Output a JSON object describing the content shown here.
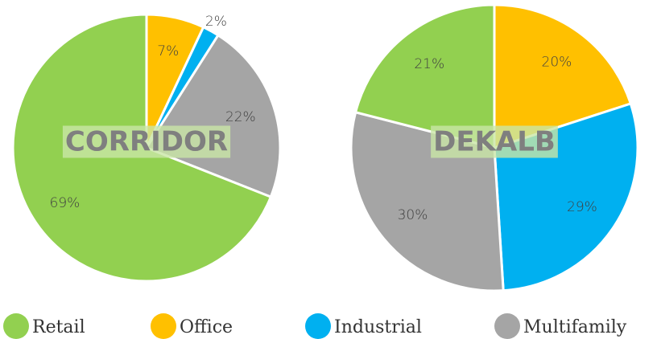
{
  "chart_data": [
    {
      "type": "pie",
      "title": "CORRIDOR",
      "values": [
        69,
        7,
        2,
        22
      ],
      "value_labels": [
        "69%",
        "7%",
        "2%",
        "22%"
      ]
    },
    {
      "type": "pie",
      "title": "DEKALB",
      "values": [
        21,
        20,
        29,
        30
      ],
      "value_labels": [
        "21%",
        "20%",
        "29%",
        "30%"
      ]
    }
  ],
  "legend": {
    "categories": [
      "Retail",
      "Office",
      "Industrial",
      "Multifamily"
    ],
    "colors": [
      "#92d050",
      "#ffc000",
      "#00b0f0",
      "#a5a5a5"
    ]
  }
}
